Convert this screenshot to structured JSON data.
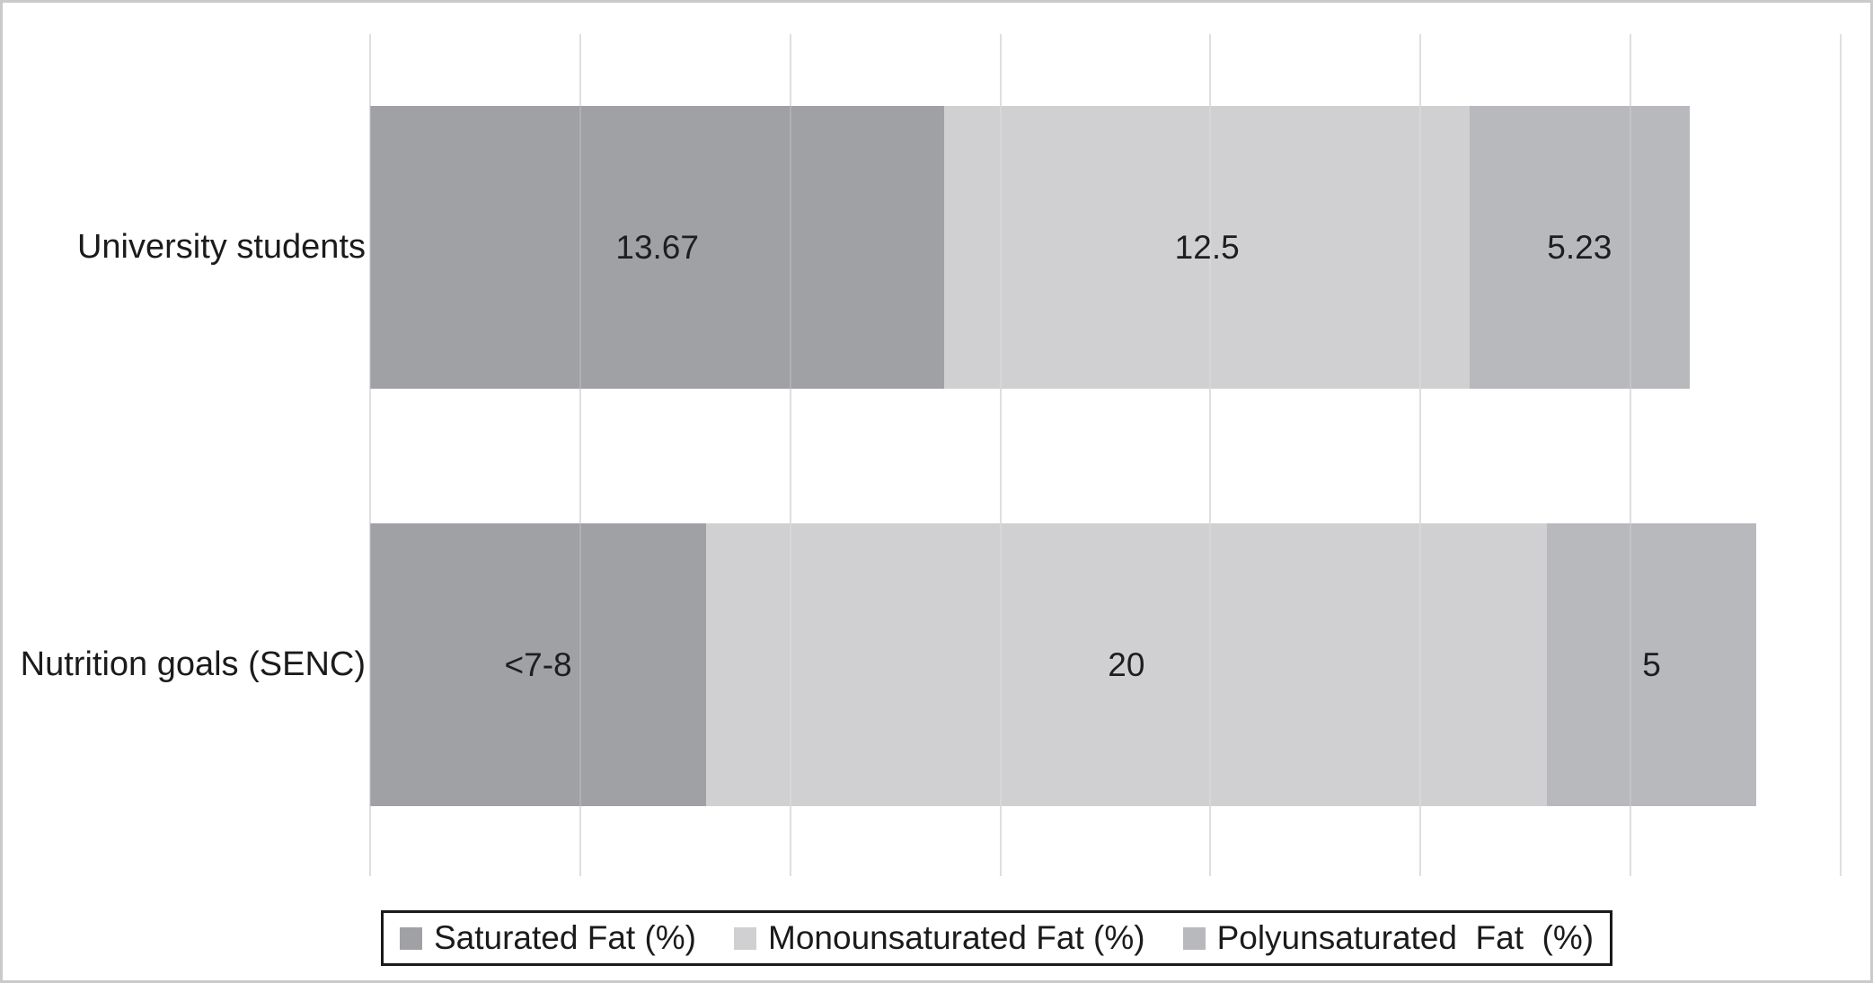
{
  "figure": {
    "background": "#ffffff",
    "frame_color": "#c9cacb",
    "text_color": "#1b1b1b"
  },
  "chart_data": {
    "type": "bar",
    "orientation": "horizontal",
    "stacked": true,
    "categories": [
      "University students",
      "Nutrition goals (SENC)"
    ],
    "series": [
      {
        "name": "Saturated Fat (%)",
        "color": "#a0a1a5",
        "values": [
          13.67,
          8
        ],
        "value_labels": [
          "13.67",
          "<7-8"
        ]
      },
      {
        "name": "Monounsaturated Fat (%)",
        "color": "#d0d0d2",
        "values": [
          12.5,
          20
        ],
        "value_labels": [
          "12.5",
          "20"
        ]
      },
      {
        "name": "Polyunsaturated  Fat  (%)",
        "color": "#b8b9bc",
        "values": [
          5.23,
          5
        ],
        "value_labels": [
          "5.23",
          "5"
        ]
      }
    ],
    "xlim": [
      0,
      35
    ],
    "gridline_step": 5,
    "grid": true,
    "gridline_color": "#d9d9d9",
    "legend_position": "bottom",
    "legend_border_color": "#1a1a1a",
    "xlabel": "",
    "ylabel": ""
  }
}
